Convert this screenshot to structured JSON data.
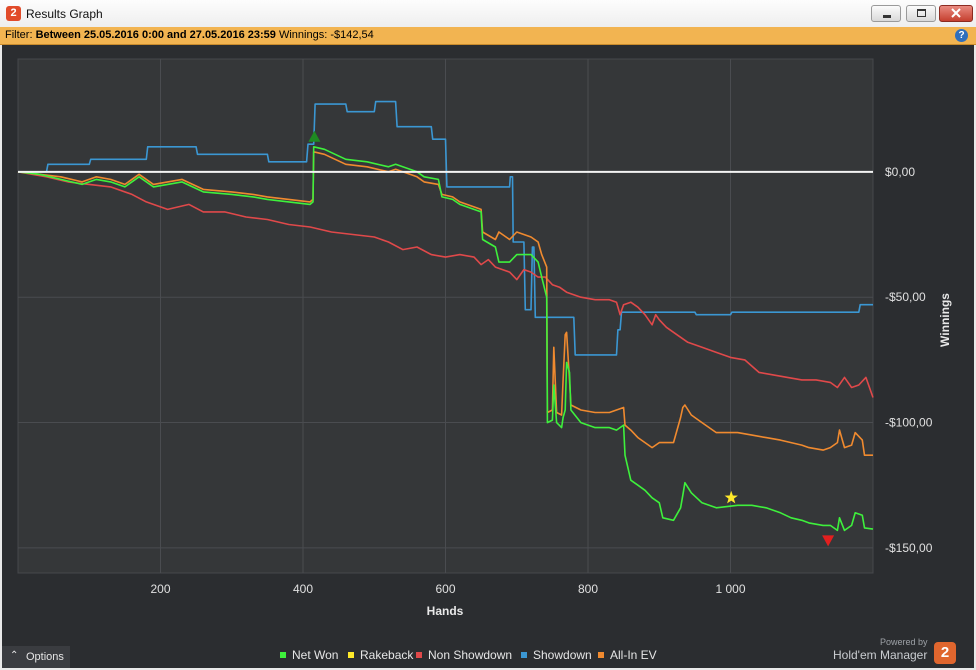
{
  "window": {
    "title": "Results Graph",
    "app_icon": "2"
  },
  "filter": {
    "prefix": "Filter:",
    "range": "Between 25.05.2016 0:00 and 27.05.2016 23:59",
    "winnings_label": "Winnings:",
    "winnings_value": "-$142,54"
  },
  "help": {
    "label": "?"
  },
  "options": {
    "label": "Options"
  },
  "branding": {
    "powered_by": "Powered by",
    "product": "Hold'em Manager",
    "logo": "2"
  },
  "chart_data": {
    "type": "line",
    "xlabel": "Hands",
    "ylabel": "Winnings",
    "xlim": [
      0,
      1200
    ],
    "ylim": [
      -160,
      45
    ],
    "x_ticks": [
      200,
      400,
      600,
      800,
      1000
    ],
    "x_tick_labels": [
      "200",
      "400",
      "600",
      "800",
      "1 000"
    ],
    "y_ticks": [
      0,
      -50,
      -100,
      -150
    ],
    "y_tick_labels": [
      "$0,00",
      "-$50,00",
      "-$100,00",
      "-$150,00"
    ],
    "grid": true,
    "legend_position": "bottom",
    "series": [
      {
        "name": "Net Won",
        "color": "#3ef03c",
        "points": [
          [
            0,
            0
          ],
          [
            30,
            -1
          ],
          [
            60,
            -3
          ],
          [
            90,
            -5
          ],
          [
            110,
            -3
          ],
          [
            130,
            -4
          ],
          [
            150,
            -6
          ],
          [
            170,
            -2
          ],
          [
            190,
            -6
          ],
          [
            230,
            -4
          ],
          [
            260,
            -8
          ],
          [
            300,
            -9
          ],
          [
            330,
            -10
          ],
          [
            350,
            -11
          ],
          [
            380,
            -12
          ],
          [
            410,
            -13
          ],
          [
            414,
            -12
          ],
          [
            415,
            10
          ],
          [
            430,
            9
          ],
          [
            460,
            5
          ],
          [
            490,
            4
          ],
          [
            520,
            2
          ],
          [
            530,
            3
          ],
          [
            550,
            1
          ],
          [
            560,
            0
          ],
          [
            570,
            -2
          ],
          [
            590,
            -3
          ],
          [
            595,
            -10
          ],
          [
            610,
            -11
          ],
          [
            620,
            -13
          ],
          [
            630,
            -14
          ],
          [
            640,
            -15
          ],
          [
            650,
            -16
          ],
          [
            652,
            -27
          ],
          [
            670,
            -30
          ],
          [
            675,
            -36
          ],
          [
            690,
            -36
          ],
          [
            700,
            -33
          ],
          [
            720,
            -33
          ],
          [
            730,
            -36
          ],
          [
            735,
            -42
          ],
          [
            742,
            -50
          ],
          [
            743,
            -100
          ],
          [
            750,
            -99
          ],
          [
            752,
            -85
          ],
          [
            756,
            -100
          ],
          [
            763,
            -102
          ],
          [
            765,
            -98
          ],
          [
            768,
            -95
          ],
          [
            770,
            -76
          ],
          [
            774,
            -80
          ],
          [
            776,
            -95
          ],
          [
            790,
            -100
          ],
          [
            810,
            -102
          ],
          [
            830,
            -102
          ],
          [
            840,
            -103
          ],
          [
            850,
            -101
          ],
          [
            852,
            -113
          ],
          [
            860,
            -123
          ],
          [
            870,
            -125
          ],
          [
            880,
            -127
          ],
          [
            890,
            -130
          ],
          [
            900,
            -132
          ],
          [
            905,
            -138
          ],
          [
            920,
            -139
          ],
          [
            930,
            -134
          ],
          [
            933,
            -129
          ],
          [
            936,
            -124
          ],
          [
            945,
            -128
          ],
          [
            960,
            -132
          ],
          [
            980,
            -134
          ],
          [
            1010,
            -133
          ],
          [
            1030,
            -133
          ],
          [
            1050,
            -134
          ],
          [
            1070,
            -136
          ],
          [
            1085,
            -138
          ],
          [
            1100,
            -139
          ],
          [
            1110,
            -140
          ],
          [
            1130,
            -141
          ],
          [
            1140,
            -141
          ],
          [
            1150,
            -143
          ],
          [
            1153,
            -138
          ],
          [
            1160,
            -143
          ],
          [
            1170,
            -141
          ],
          [
            1175,
            -136
          ],
          [
            1185,
            -137
          ],
          [
            1188,
            -142
          ],
          [
            1200,
            -142.5
          ]
        ]
      },
      {
        "name": "Rakeback",
        "color": "#ffe92a",
        "points": []
      },
      {
        "name": "Non Showdown",
        "color": "#e0494a",
        "points": [
          [
            0,
            0
          ],
          [
            40,
            -2
          ],
          [
            70,
            -4
          ],
          [
            100,
            -5
          ],
          [
            130,
            -6
          ],
          [
            160,
            -9
          ],
          [
            180,
            -12
          ],
          [
            210,
            -15
          ],
          [
            240,
            -13
          ],
          [
            260,
            -16
          ],
          [
            290,
            -16
          ],
          [
            320,
            -18
          ],
          [
            350,
            -19
          ],
          [
            380,
            -21
          ],
          [
            410,
            -22
          ],
          [
            440,
            -24
          ],
          [
            470,
            -25
          ],
          [
            500,
            -26
          ],
          [
            520,
            -28
          ],
          [
            540,
            -31
          ],
          [
            560,
            -30
          ],
          [
            580,
            -33
          ],
          [
            600,
            -34
          ],
          [
            620,
            -33
          ],
          [
            640,
            -34
          ],
          [
            650,
            -37
          ],
          [
            660,
            -35
          ],
          [
            670,
            -38
          ],
          [
            680,
            -39
          ],
          [
            690,
            -40
          ],
          [
            700,
            -43
          ],
          [
            710,
            -39
          ],
          [
            720,
            -40
          ],
          [
            730,
            -42
          ],
          [
            740,
            -42
          ],
          [
            750,
            -45
          ],
          [
            760,
            -46
          ],
          [
            770,
            -48
          ],
          [
            790,
            -50
          ],
          [
            810,
            -51
          ],
          [
            830,
            -51
          ],
          [
            840,
            -52
          ],
          [
            845,
            -57
          ],
          [
            850,
            -53
          ],
          [
            860,
            -52
          ],
          [
            870,
            -54
          ],
          [
            880,
            -57
          ],
          [
            890,
            -61
          ],
          [
            895,
            -57
          ],
          [
            900,
            -59
          ],
          [
            910,
            -62
          ],
          [
            920,
            -64
          ],
          [
            940,
            -68
          ],
          [
            960,
            -70
          ],
          [
            980,
            -72
          ],
          [
            1000,
            -74
          ],
          [
            1020,
            -75
          ],
          [
            1040,
            -80
          ],
          [
            1060,
            -81
          ],
          [
            1080,
            -82
          ],
          [
            1100,
            -83
          ],
          [
            1120,
            -83
          ],
          [
            1140,
            -84
          ],
          [
            1150,
            -86
          ],
          [
            1160,
            -82
          ],
          [
            1170,
            -86
          ],
          [
            1180,
            -85
          ],
          [
            1190,
            -82
          ],
          [
            1200,
            -90
          ]
        ]
      },
      {
        "name": "Showdown",
        "color": "#3b97d3",
        "points": [
          [
            0,
            0
          ],
          [
            40,
            0
          ],
          [
            42,
            3
          ],
          [
            100,
            3
          ],
          [
            102,
            5
          ],
          [
            180,
            5
          ],
          [
            182,
            10
          ],
          [
            250,
            10
          ],
          [
            252,
            7
          ],
          [
            350,
            7
          ],
          [
            352,
            4
          ],
          [
            405,
            4
          ],
          [
            407,
            11
          ],
          [
            415,
            11
          ],
          [
            417,
            27
          ],
          [
            460,
            27
          ],
          [
            462,
            24
          ],
          [
            500,
            24
          ],
          [
            502,
            28
          ],
          [
            530,
            28
          ],
          [
            532,
            18
          ],
          [
            580,
            18
          ],
          [
            582,
            13
          ],
          [
            600,
            13
          ],
          [
            602,
            -6
          ],
          [
            690,
            -6
          ],
          [
            691,
            -2
          ],
          [
            694,
            -2
          ],
          [
            695,
            -28
          ],
          [
            710,
            -28
          ],
          [
            712,
            -55
          ],
          [
            720,
            -55
          ],
          [
            722,
            -30
          ],
          [
            724,
            -30
          ],
          [
            726,
            -58
          ],
          [
            780,
            -58
          ],
          [
            782,
            -73
          ],
          [
            840,
            -73
          ],
          [
            842,
            -63
          ],
          [
            845,
            -63
          ],
          [
            847,
            -56
          ],
          [
            950,
            -56
          ],
          [
            952,
            -57
          ],
          [
            1000,
            -57
          ],
          [
            1002,
            -56
          ],
          [
            1180,
            -56
          ],
          [
            1182,
            -53
          ],
          [
            1200,
            -53
          ]
        ]
      },
      {
        "name": "All-In EV",
        "color": "#f08a2f",
        "points": [
          [
            0,
            0
          ],
          [
            30,
            -1
          ],
          [
            60,
            -2
          ],
          [
            90,
            -4
          ],
          [
            110,
            -2
          ],
          [
            130,
            -3
          ],
          [
            150,
            -5
          ],
          [
            170,
            -1
          ],
          [
            190,
            -5
          ],
          [
            230,
            -3
          ],
          [
            260,
            -7
          ],
          [
            300,
            -8
          ],
          [
            330,
            -9
          ],
          [
            350,
            -10
          ],
          [
            380,
            -11
          ],
          [
            410,
            -12
          ],
          [
            414,
            -11
          ],
          [
            415,
            8
          ],
          [
            430,
            7
          ],
          [
            460,
            3
          ],
          [
            490,
            2
          ],
          [
            520,
            0
          ],
          [
            530,
            1
          ],
          [
            550,
            -1
          ],
          [
            560,
            -2
          ],
          [
            570,
            -4
          ],
          [
            590,
            -5
          ],
          [
            595,
            -9
          ],
          [
            610,
            -10
          ],
          [
            620,
            -12
          ],
          [
            630,
            -13
          ],
          [
            640,
            -14
          ],
          [
            650,
            -15
          ],
          [
            652,
            -24
          ],
          [
            670,
            -27
          ],
          [
            675,
            -24
          ],
          [
            690,
            -27
          ],
          [
            700,
            -24
          ],
          [
            720,
            -26
          ],
          [
            730,
            -28
          ],
          [
            735,
            -33
          ],
          [
            742,
            -38
          ],
          [
            743,
            -96
          ],
          [
            750,
            -95
          ],
          [
            752,
            -70
          ],
          [
            756,
            -96
          ],
          [
            763,
            -97
          ],
          [
            765,
            -83
          ],
          [
            768,
            -65
          ],
          [
            770,
            -64
          ],
          [
            774,
            -83
          ],
          [
            776,
            -93
          ],
          [
            790,
            -95
          ],
          [
            810,
            -96
          ],
          [
            830,
            -96
          ],
          [
            840,
            -95
          ],
          [
            850,
            -94
          ],
          [
            852,
            -101
          ],
          [
            860,
            -103
          ],
          [
            870,
            -106
          ],
          [
            880,
            -108
          ],
          [
            890,
            -110
          ],
          [
            900,
            -108
          ],
          [
            905,
            -108
          ],
          [
            920,
            -108
          ],
          [
            930,
            -98
          ],
          [
            933,
            -94
          ],
          [
            936,
            -93
          ],
          [
            945,
            -97
          ],
          [
            960,
            -100
          ],
          [
            980,
            -104
          ],
          [
            1010,
            -104
          ],
          [
            1030,
            -105
          ],
          [
            1050,
            -106
          ],
          [
            1070,
            -107
          ],
          [
            1085,
            -108
          ],
          [
            1100,
            -109
          ],
          [
            1110,
            -110
          ],
          [
            1130,
            -111
          ],
          [
            1140,
            -110
          ],
          [
            1150,
            -108
          ],
          [
            1153,
            -103
          ],
          [
            1160,
            -110
          ],
          [
            1170,
            -109
          ],
          [
            1175,
            -104
          ],
          [
            1185,
            -107
          ],
          [
            1188,
            -113
          ],
          [
            1200,
            -113
          ]
        ]
      }
    ],
    "markers": [
      {
        "name": "max-marker",
        "shape": "triangle-up",
        "color": "#1f8a22",
        "x": 416,
        "y": 14
      },
      {
        "name": "rakeback-star",
        "shape": "star",
        "color": "#ffe92a",
        "x": 1001,
        "y": -130
      },
      {
        "name": "min-marker",
        "shape": "triangle-down",
        "color": "#e31f1f",
        "x": 1137,
        "y": -147
      }
    ]
  }
}
